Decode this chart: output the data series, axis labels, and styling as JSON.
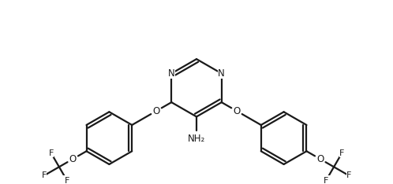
{
  "bg_color": "#ffffff",
  "line_color": "#1a1a1a",
  "bond_lw": 1.6,
  "font_size": 8.5,
  "figsize": [
    4.98,
    2.34
  ],
  "dpi": 100,
  "xlim": [
    -2.1,
    2.1
  ],
  "ylim": [
    -0.95,
    1.05
  ]
}
